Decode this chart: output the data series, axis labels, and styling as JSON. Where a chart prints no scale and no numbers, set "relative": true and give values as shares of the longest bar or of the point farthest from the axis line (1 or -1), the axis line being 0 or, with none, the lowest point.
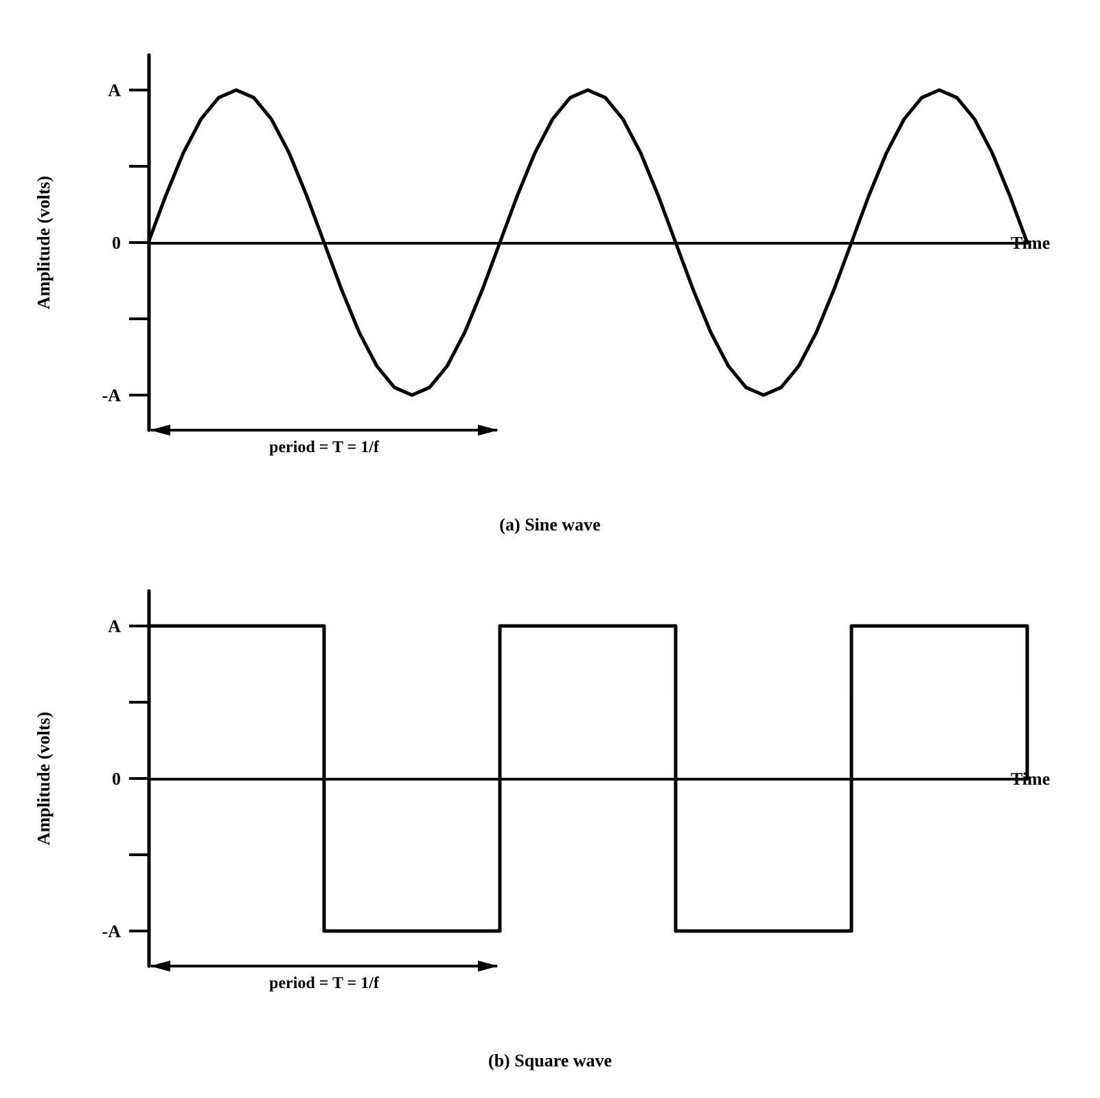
{
  "chart_data": [
    {
      "type": "line",
      "title": "(a) Sine wave",
      "xlabel": "Time",
      "ylabel": "Amplitude (volts)",
      "annotations": [
        "period = T = 1/f",
        "A",
        "0",
        "-A"
      ],
      "categories": [
        null,
        null,
        null,
        null,
        null,
        null,
        null,
        null,
        null,
        null,
        null,
        null,
        null,
        null,
        null,
        null,
        null,
        null,
        null,
        null,
        null,
        null,
        null,
        null,
        null,
        null,
        null,
        null,
        null,
        null,
        null,
        null,
        null,
        null,
        null,
        null,
        null,
        null,
        null,
        null,
        null,
        null,
        null,
        null,
        null,
        null,
        null,
        null,
        null,
        null,
        null
      ],
      "series": [
        {
          "color": "#000000",
          "values": [
            0,
            0.31,
            0.59,
            0.81,
            0.95,
            1,
            0.95,
            0.81,
            0.59,
            0.31,
            0,
            -0.31,
            -0.59,
            -0.81,
            -0.95,
            -1,
            -0.95,
            -0.81,
            -0.59,
            -0.31,
            0,
            0.31,
            0.59,
            0.81,
            0.95,
            1,
            0.95,
            0.81,
            0.59,
            0.31,
            0,
            -0.31,
            -0.59,
            -0.81,
            -0.95,
            -1,
            -0.95,
            -0.81,
            -0.59,
            -0.31,
            0,
            0.31,
            0.59,
            0.81,
            0.95,
            1,
            0.95,
            0.81,
            0.59,
            0.31,
            0
          ]
        }
      ],
      "relative": true,
      "grid": false,
      "marker": "none",
      "line_style": "solid"
    },
    {
      "type": "step",
      "title": "(b) Square wave",
      "xlabel": "Time",
      "ylabel": "Amplitude (volts)",
      "annotations": [
        "period = T = 1/f",
        "A",
        "0",
        "-A"
      ],
      "categories": [
        null,
        null,
        null,
        null,
        null,
        null
      ],
      "series": [
        {
          "color": "#000000",
          "values": [
            1,
            -1,
            1,
            -1,
            1,
            0
          ]
        }
      ],
      "relative": true,
      "grid": false,
      "marker": "none",
      "line_style": "solid"
    }
  ]
}
